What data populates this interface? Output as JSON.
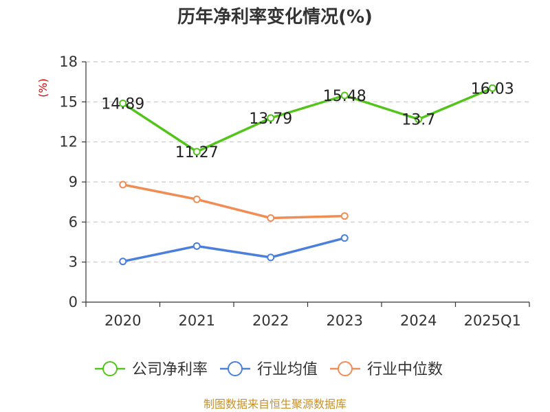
{
  "chart_data": {
    "type": "line",
    "title": "历年净利率变化情况(%)",
    "ylabel": "(%)",
    "xlabel": "",
    "categories": [
      "2020",
      "2021",
      "2022",
      "2023",
      "2024",
      "2025Q1"
    ],
    "ylim": [
      0,
      18
    ],
    "yticks": [
      0,
      3,
      6,
      9,
      12,
      15,
      18
    ],
    "grid": true,
    "legend_position": "bottom",
    "series": [
      {
        "name": "公司净利率",
        "color": "#52c41a",
        "values": [
          14.89,
          11.27,
          13.79,
          15.48,
          13.7,
          16.03
        ],
        "labels": [
          "14.89",
          "11.27",
          "13.79",
          "15.48",
          "13.7",
          "16.03"
        ]
      },
      {
        "name": "行业均值",
        "color": "#4a7fdc",
        "values": [
          3.05,
          4.2,
          3.35,
          4.8,
          null,
          null
        ]
      },
      {
        "name": "行业中位数",
        "color": "#f28c55",
        "values": [
          8.8,
          7.7,
          6.3,
          6.45,
          null,
          null
        ]
      }
    ],
    "source": "制图数据来自恒生聚源数据库"
  }
}
